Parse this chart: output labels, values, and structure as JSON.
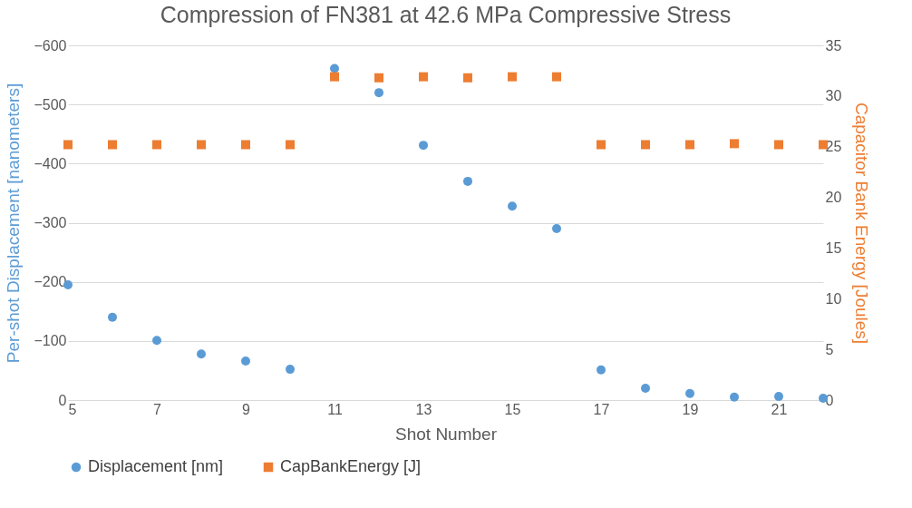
{
  "chart_data": {
    "type": "scatter",
    "title": "Compression of FN381 at 42.6 MPa Compressive Stress",
    "xlabel": "Shot Number",
    "ylabel": "Per-shot Displacement [nanometers]",
    "y2label": "Capacitor Bank Energy [Joules]",
    "x": [
      5,
      6,
      7,
      8,
      9,
      10,
      11,
      12,
      13,
      14,
      15,
      16,
      17,
      18,
      19,
      20,
      21,
      22
    ],
    "series": [
      {
        "name": "Displacement [nm]",
        "color": "#5b9bd5",
        "marker": "circle",
        "axis": "y",
        "values": [
          -195,
          -140,
          -101,
          -78,
          -66,
          -52,
          -561,
          -520,
          -431,
          -370,
          -328,
          -290,
          -51,
          -20,
          -11,
          -5,
          -6,
          -3
        ]
      },
      {
        "name": "CapBankEnergy [J]",
        "color": "#ed7d31",
        "marker": "square",
        "axis": "y2",
        "values": [
          25.2,
          25.2,
          25.2,
          25.2,
          25.2,
          25.2,
          31.9,
          31.8,
          31.9,
          31.8,
          31.9,
          31.9,
          25.2,
          25.2,
          25.2,
          25.3,
          25.2,
          25.2
        ]
      }
    ],
    "xlim": [
      5,
      22
    ],
    "xticks": [
      5,
      7,
      9,
      11,
      13,
      15,
      17,
      19,
      21
    ],
    "ylim": [
      0,
      -600
    ],
    "yticks": [
      0,
      -100,
      -200,
      -300,
      -400,
      -500,
      -600
    ],
    "y2lim": [
      0,
      35
    ],
    "y2ticks": [
      0,
      5,
      10,
      15,
      20,
      25,
      30,
      35
    ],
    "grid": "y",
    "legend": "bottom"
  }
}
